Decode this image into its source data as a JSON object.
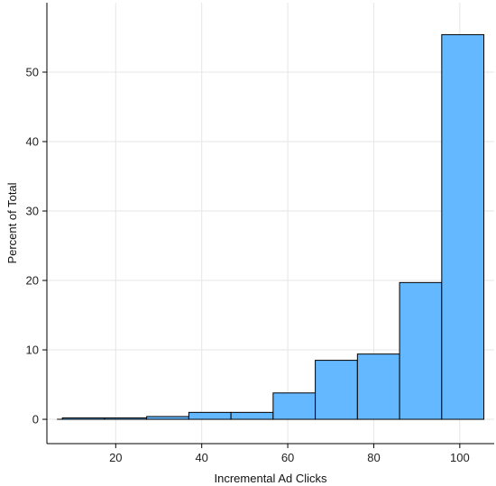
{
  "chart_data": {
    "type": "bar",
    "subtype": "histogram",
    "title": "",
    "xlabel": "Incremental Ad Clicks",
    "ylabel": "Percent of Total",
    "xlim": [
      4,
      108
    ],
    "ylim": [
      -3.5,
      60
    ],
    "xticks": [
      20,
      40,
      60,
      80,
      100
    ],
    "yticks": [
      0,
      10,
      20,
      30,
      40,
      50
    ],
    "grid": true,
    "legend": "none",
    "bar_color": "#63b8ff",
    "bar_edge_color": "#000000",
    "bins": [
      {
        "start": 7.6,
        "end": 17.4,
        "value": 0.2
      },
      {
        "start": 17.4,
        "end": 27.2,
        "value": 0.2
      },
      {
        "start": 27.2,
        "end": 37.0,
        "value": 0.4
      },
      {
        "start": 37.0,
        "end": 46.8,
        "value": 1.0
      },
      {
        "start": 46.8,
        "end": 56.6,
        "value": 1.0
      },
      {
        "start": 56.6,
        "end": 66.4,
        "value": 3.8
      },
      {
        "start": 66.4,
        "end": 76.2,
        "value": 8.5
      },
      {
        "start": 76.2,
        "end": 86.0,
        "value": 9.4
      },
      {
        "start": 86.0,
        "end": 95.8,
        "value": 19.7
      },
      {
        "start": 95.8,
        "end": 105.6,
        "value": 55.4
      }
    ]
  }
}
